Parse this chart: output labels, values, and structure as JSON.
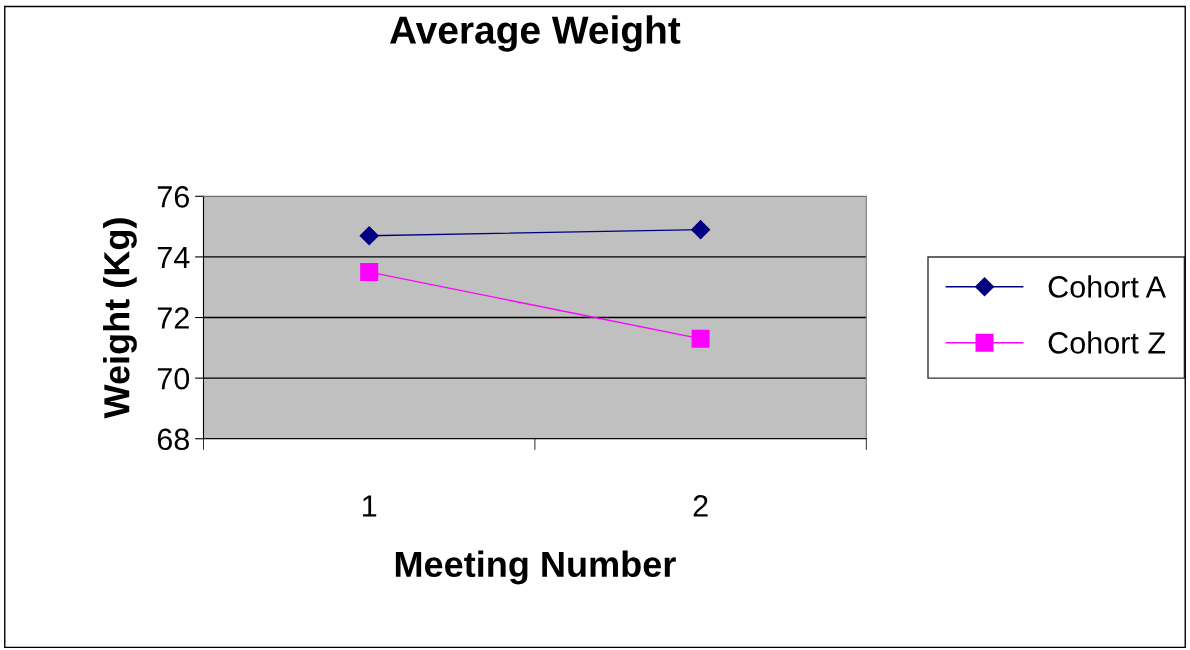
{
  "chart_data": {
    "type": "line",
    "title": "Average Weight",
    "xlabel": "Meeting Number",
    "ylabel": "Weight (Kg)",
    "categories": [
      "1",
      "2"
    ],
    "series": [
      {
        "name": "Cohort A",
        "color": "#000080",
        "marker": "diamond",
        "values": [
          74.7,
          74.9
        ]
      },
      {
        "name": "Cohort Z",
        "color": "#ff00ff",
        "marker": "square",
        "values": [
          73.5,
          71.3
        ]
      }
    ],
    "ylim": [
      68,
      76
    ],
    "yticks": [
      68,
      70,
      72,
      74,
      76
    ],
    "grid": "y",
    "legend": "right",
    "line_style": "solid"
  }
}
